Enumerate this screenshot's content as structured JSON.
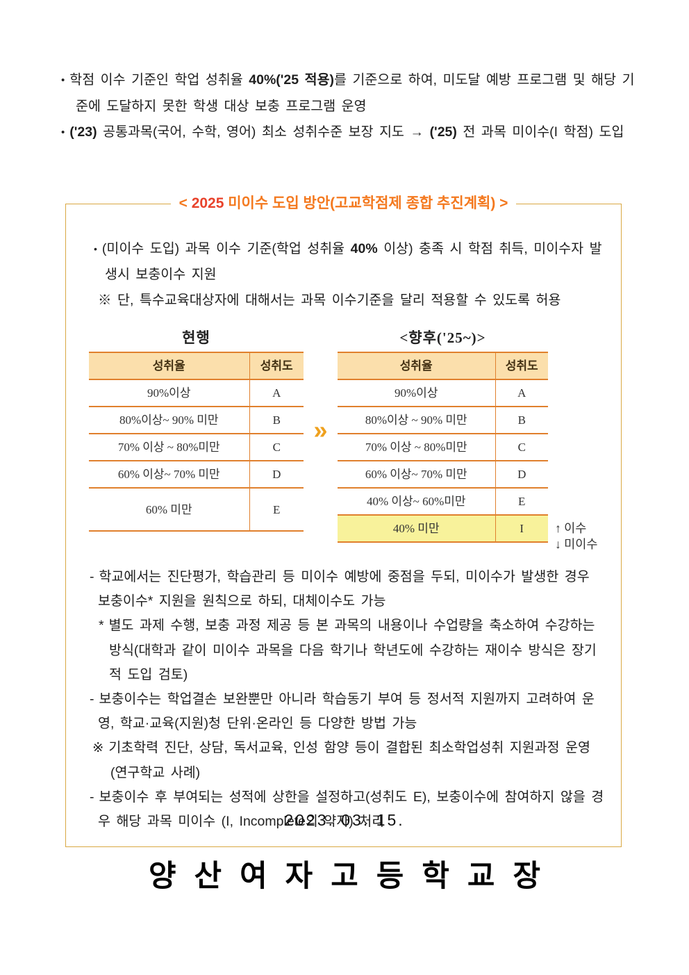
{
  "colors": {
    "accent_orange": "#F4791F",
    "accent_red": "#E8432C",
    "table_border": "#E0802D",
    "header_fill": "#FBDFAC",
    "highlight_fill": "#F8F29B",
    "box_border": "#D9A843",
    "arrow_gold": "#EFA11E",
    "text": "#1F1F1F"
  },
  "intro": {
    "items": [
      {
        "m": "•",
        "segments": [
          {
            "t": "학점 이수 기준인 학업 성취율 "
          },
          {
            "t": "40%('25 적용)",
            "b": true
          },
          {
            "t": "를 기준으로 하여, 미도달 예방 프로그램 및 해당 기준에 도달하지 못한 학생 대상 보충 프로그램 운영"
          }
        ]
      },
      {
        "m": "•",
        "segments": [
          {
            "t": "('23)",
            "b": true
          },
          {
            "t": " 공통과목(국어, 수학, 영어) 최소 성취수준 보장 지도  → "
          },
          {
            "t": "('25)",
            "b": true
          },
          {
            "t": " 전 과목 미이수(I 학점) 도입"
          }
        ]
      }
    ]
  },
  "box": {
    "title_prefix": "< ",
    "title_year": "2025",
    "title_rest": " 미이수 도입 방안(고교학점제 종합 추진계획) >",
    "bullet_marker": "•",
    "bullet_segments": [
      {
        "t": "(미이수 도입) 과목 이수 기준(학업 성취율 "
      },
      {
        "t": "40%",
        "b": true
      },
      {
        "t": " 이상) 충족 시 학점 취득, 미이수자 발생시 보충이수 지원"
      }
    ],
    "note": "※ 단, 특수교육대상자에 대해서는 과목 이수기준을 달리 적용할 수 있도록 허용",
    "tables": {
      "current": {
        "title": "현행",
        "headers": [
          "성취율",
          "성취도"
        ],
        "rows": [
          [
            "90%이상",
            "A"
          ],
          [
            "80%이상~ 90% 미만",
            "B"
          ],
          [
            "70% 이상 ~ 80%미만",
            "C"
          ],
          [
            "60% 이상~ 70% 미만",
            "D"
          ],
          [
            "60% 미만",
            "E"
          ]
        ]
      },
      "arrow": "»",
      "future": {
        "title": "<향후('25~)>",
        "headers": [
          "성취율",
          "성취도"
        ],
        "rows": [
          [
            "90%이상",
            "A"
          ],
          [
            "80%이상 ~ 90% 미만",
            "B"
          ],
          [
            "70% 이상 ~ 80%미만",
            "C"
          ],
          [
            "60% 이상~ 70% 미만",
            "D"
          ],
          [
            "40% 이상~ 60%미만",
            "E"
          ],
          [
            "40% 미만",
            "I"
          ]
        ],
        "highlight_row": 5,
        "annotation_pass": "↑ 이수",
        "annotation_fail": "↓ 미이수"
      }
    },
    "notes": [
      {
        "m": "-",
        "cls": "dash",
        "t": "학교에서는 진단평가, 학습관리 등 미이수 예방에 중점을 두되, 미이수가 발생한 경우 보충이수* 지원을 원칙으로 하되, 대체이수도 가능"
      },
      {
        "m": "*",
        "cls": "star",
        "t": "별도 과제 수행, 보충 과정 제공 등 본 과목의 내용이나 수업량을 축소하여 수강하는 방식(대학과 같이 미이수 과목을 다음 학기나 학년도에 수강하는 재이수 방식은 장기적 도입 검토)"
      },
      {
        "m": "-",
        "cls": "dash",
        "t": "보충이수는 학업결손 보완뿐만 아니라 학습동기 부여 등 정서적 지원까지 고려하여 운영, 학교·교육(지원)청 단위·온라인 등 다양한 방법 가능"
      },
      {
        "m": "※",
        "cls": "ref",
        "t": "기초학력 진단, 상담, 독서교육, 인성 함양 등이 결합된 최소학업성취 지원과정 운영(연구학교 사례)"
      },
      {
        "m": "-",
        "cls": "dash",
        "t": "보충이수 후 부여되는 성적에 상한을 설정하고(성취도 E), 보충이수에 참여하지 않을 경우 해당 과목 미이수 (I, Incomplete의 약자) 처리"
      }
    ]
  },
  "footer": {
    "date": "2023. 03. 15.",
    "signer": "양산여자고등학교장"
  }
}
